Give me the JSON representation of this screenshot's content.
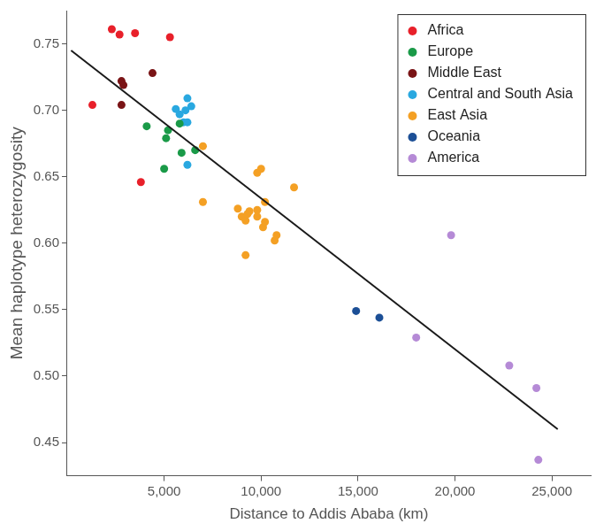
{
  "chart_data": {
    "type": "scatter",
    "x_label": "Distance to Addis Ababa (km)",
    "y_label": "Mean haplotype heterozygosity",
    "xlim": [
      0,
      27000
    ],
    "ylim": [
      0.425,
      0.775
    ],
    "xticks": [
      {
        "value": 5000,
        "label": "5,000"
      },
      {
        "value": 10000,
        "label": "10,000"
      },
      {
        "value": 15000,
        "label": "15,000"
      },
      {
        "value": 20000,
        "label": "20,000"
      },
      {
        "value": 25000,
        "label": "25,000"
      }
    ],
    "yticks": [
      0.45,
      {
        "value": 0.5,
        "label": "0.50"
      },
      0.55,
      {
        "value": 0.6,
        "label": "0.60"
      },
      0.65,
      {
        "value": 0.7,
        "label": "0.70"
      },
      0.75
    ],
    "grid": false,
    "legend": "top-right",
    "series": [
      {
        "name": "Africa",
        "color": "#e8202a",
        "x": [
          2300,
          2700,
          3500,
          5300,
          1300,
          3800
        ],
        "values": [
          0.761,
          0.757,
          0.758,
          0.755,
          0.704,
          0.646
        ]
      },
      {
        "name": "Europe",
        "color": "#1a9a48",
        "x": [
          4100,
          5100,
          5200,
          5000,
          5800,
          5900,
          6600
        ],
        "values": [
          0.688,
          0.679,
          0.685,
          0.656,
          0.69,
          0.668,
          0.67
        ]
      },
      {
        "name": "Middle East",
        "color": "#7a1416",
        "x": [
          2800,
          2900,
          2800,
          4400
        ],
        "values": [
          0.722,
          0.719,
          0.704,
          0.728
        ]
      },
      {
        "name": "Central and South Asia",
        "color": "#29a8e0",
        "x": [
          5600,
          5800,
          6000,
          6100,
          6200,
          6400,
          6200,
          6200
        ],
        "values": [
          0.701,
          0.697,
          0.691,
          0.7,
          0.709,
          0.703,
          0.691,
          0.659
        ]
      },
      {
        "name": "East Asia",
        "color": "#f4a024",
        "x": [
          7000,
          7000,
          8800,
          9000,
          9200,
          9300,
          9400,
          9200,
          9800,
          9800,
          9800,
          10000,
          10100,
          10200,
          10200,
          10700,
          10800,
          11700
        ],
        "values": [
          0.673,
          0.631,
          0.626,
          0.62,
          0.617,
          0.622,
          0.624,
          0.591,
          0.62,
          0.625,
          0.653,
          0.656,
          0.612,
          0.616,
          0.631,
          0.602,
          0.606,
          0.642
        ]
      },
      {
        "name": "Oceania",
        "color": "#1c4f96",
        "x": [
          14900,
          16100
        ],
        "values": [
          0.549,
          0.544
        ]
      },
      {
        "name": "America",
        "color": "#b58ad6",
        "x": [
          19800,
          18000,
          22800,
          24200,
          24300
        ],
        "values": [
          0.606,
          0.529,
          0.508,
          0.491,
          0.437
        ]
      }
    ],
    "regression_line": {
      "color": "#1a1a1a",
      "x": [
        200,
        25300
      ],
      "values": [
        0.745,
        0.46
      ]
    }
  }
}
